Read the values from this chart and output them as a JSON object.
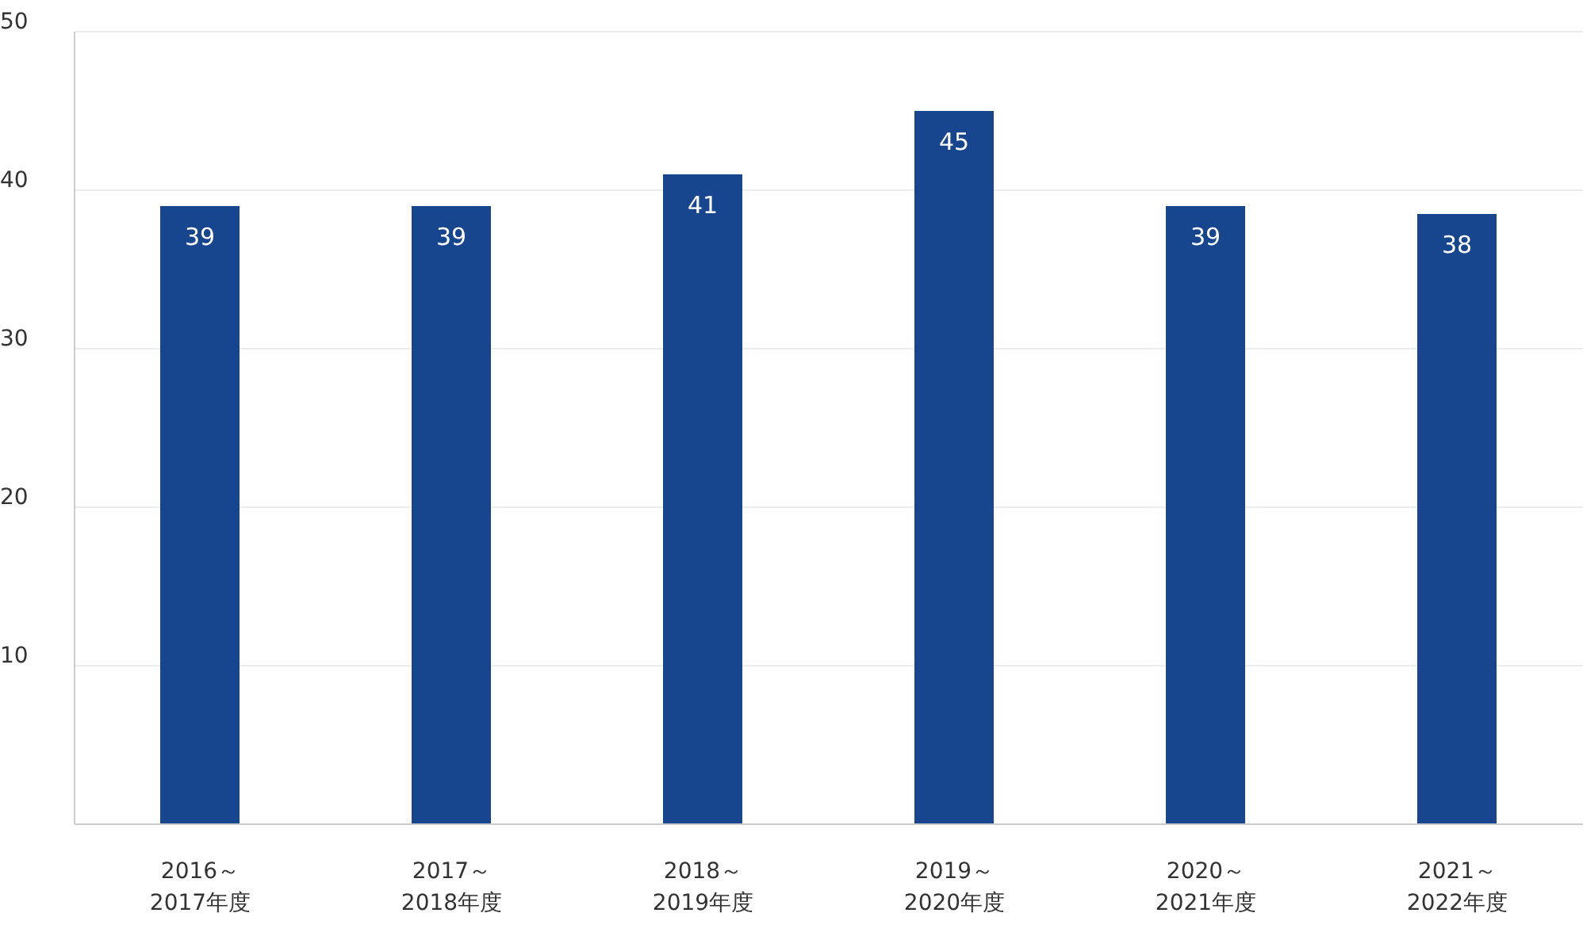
{
  "chart_data": {
    "type": "bar",
    "categories": [
      "2016～2017年度",
      "2017～2018年度",
      "2018～2019年度",
      "2019～2020年度",
      "2020～2021年度",
      "2021～2022年度"
    ],
    "values": [
      39,
      39,
      41,
      45,
      39,
      38.5
    ],
    "value_labels": [
      "39",
      "39",
      "41",
      "45",
      "39",
      "38"
    ],
    "color": "#17468e",
    "ylim": [
      0,
      50
    ],
    "yticks": [
      {
        "value": 0,
        "label": null
      },
      10,
      20,
      30,
      40,
      50
    ],
    "grid": "y"
  }
}
